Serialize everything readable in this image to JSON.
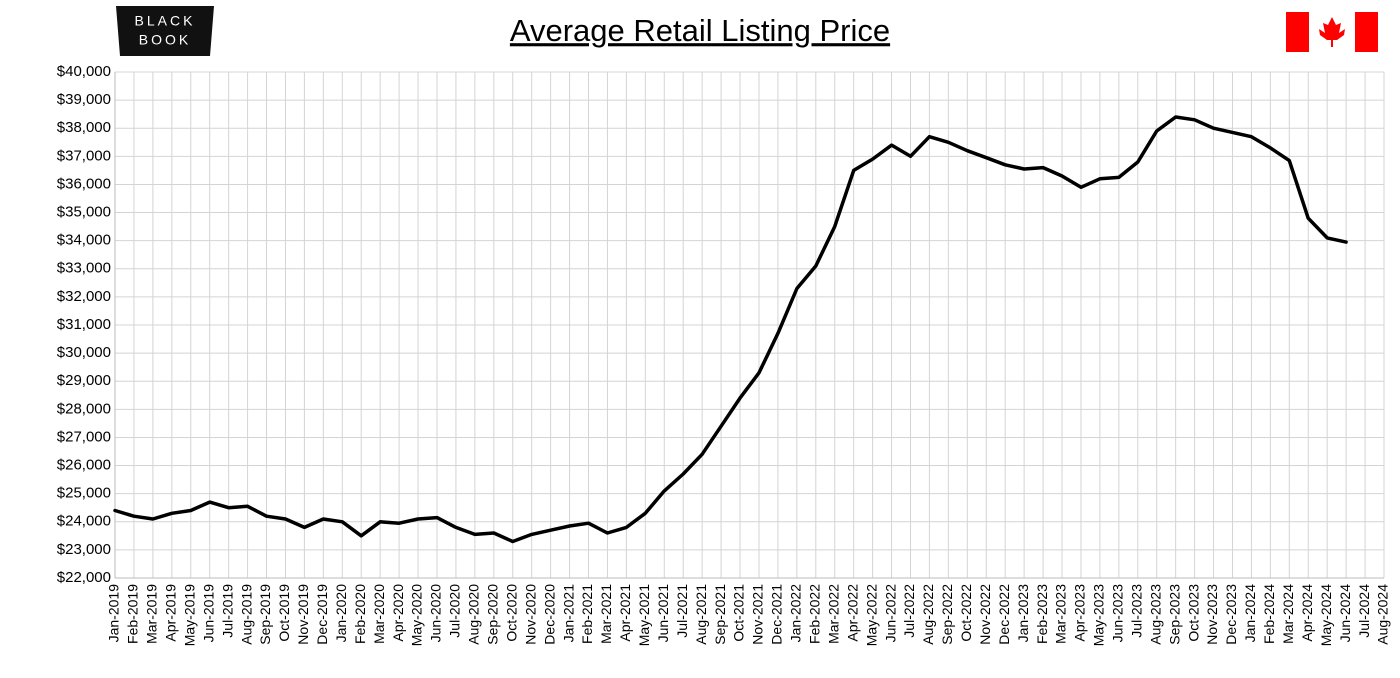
{
  "logo": {
    "lines": [
      "BLACK",
      "BOOK"
    ]
  },
  "chart_data": {
    "type": "line",
    "title": "Average Retail Listing Price",
    "categories": [
      "Jan-2019",
      "Feb-2019",
      "Mar-2019",
      "Apr-2019",
      "May-2019",
      "Jun-2019",
      "Jul-2019",
      "Aug-2019",
      "Sep-2019",
      "Oct-2019",
      "Nov-2019",
      "Dec-2019",
      "Jan-2020",
      "Feb-2020",
      "Mar-2020",
      "Apr-2020",
      "May-2020",
      "Jun-2020",
      "Jul-2020",
      "Aug-2020",
      "Sep-2020",
      "Oct-2020",
      "Nov-2020",
      "Dec-2020",
      "Jan-2021",
      "Feb-2021",
      "Mar-2021",
      "Apr-2021",
      "May-2021",
      "Jun-2021",
      "Jul-2021",
      "Aug-2021",
      "Sep-2021",
      "Oct-2021",
      "Nov-2021",
      "Dec-2021",
      "Jan-2022",
      "Feb-2022",
      "Mar-2022",
      "Apr-2022",
      "May-2022",
      "Jun-2022",
      "Jul-2022",
      "Aug-2022",
      "Sep-2022",
      "Oct-2022",
      "Nov-2022",
      "Dec-2022",
      "Jan-2023",
      "Feb-2023",
      "Mar-2023",
      "Apr-2023",
      "May-2023",
      "Jun-2023",
      "Jul-2023",
      "Aug-2023",
      "Sep-2023",
      "Oct-2023",
      "Nov-2023",
      "Dec-2023",
      "Jan-2024",
      "Feb-2024",
      "Mar-2024",
      "Apr-2024",
      "May-2024",
      "Jun-2024",
      "Jul-2024",
      "Aug-2024"
    ],
    "values": [
      24400,
      24200,
      24100,
      24300,
      24400,
      24700,
      24500,
      24550,
      24200,
      24100,
      23800,
      24100,
      24000,
      23500,
      24000,
      23950,
      24100,
      24150,
      23800,
      23550,
      23600,
      23300,
      23550,
      23700,
      23850,
      23950,
      23600,
      23800,
      24300,
      25100,
      25700,
      26400,
      27400,
      28400,
      29300,
      30700,
      32300,
      33100,
      34500,
      36500,
      36900,
      37400,
      37000,
      37700,
      37500,
      37200,
      36950,
      36700,
      36550,
      36600,
      36300,
      35900,
      36200,
      36250,
      36800,
      37900,
      38400,
      38300,
      38000,
      37850,
      37700,
      37300,
      36850,
      34800,
      34100,
      33950,
      null,
      null
    ],
    "color": "#000000",
    "ylim": [
      22000,
      40000
    ],
    "yticks": [
      {
        "value": 22000,
        "label": "$22,000"
      },
      {
        "value": 23000,
        "label": "$23,000"
      },
      {
        "value": 24000,
        "label": "$24,000"
      },
      {
        "value": 25000,
        "label": "$25,000"
      },
      {
        "value": 26000,
        "label": "$26,000"
      },
      {
        "value": 27000,
        "label": "$27,000"
      },
      {
        "value": 28000,
        "label": "$28,000"
      },
      {
        "value": 29000,
        "label": "$29,000"
      },
      {
        "value": 30000,
        "label": "$30,000"
      },
      {
        "value": 31000,
        "label": "$31,000"
      },
      {
        "value": 32000,
        "label": "$32,000"
      },
      {
        "value": 33000,
        "label": "$33,000"
      },
      {
        "value": 34000,
        "label": "$34,000"
      },
      {
        "value": 35000,
        "label": "$35,000"
      },
      {
        "value": 36000,
        "label": "$36,000"
      },
      {
        "value": 37000,
        "label": "$37,000"
      },
      {
        "value": 38000,
        "label": "$38,000"
      },
      {
        "value": 39000,
        "label": "$39,000"
      },
      {
        "value": 40000,
        "label": "$40,000"
      }
    ],
    "grid": true
  }
}
